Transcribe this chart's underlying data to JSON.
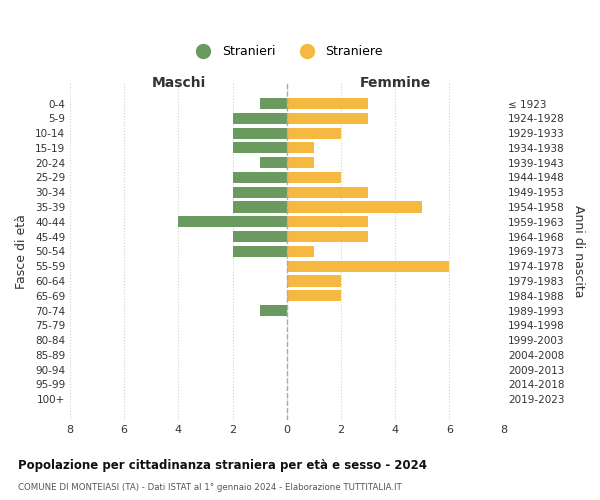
{
  "age_groups": [
    "0-4",
    "5-9",
    "10-14",
    "15-19",
    "20-24",
    "25-29",
    "30-34",
    "35-39",
    "40-44",
    "45-49",
    "50-54",
    "55-59",
    "60-64",
    "65-69",
    "70-74",
    "75-79",
    "80-84",
    "85-89",
    "90-94",
    "95-99",
    "100+"
  ],
  "birth_years": [
    "2019-2023",
    "2014-2018",
    "2009-2013",
    "2004-2008",
    "1999-2003",
    "1994-1998",
    "1989-1993",
    "1984-1988",
    "1979-1983",
    "1974-1978",
    "1969-1973",
    "1964-1968",
    "1959-1963",
    "1954-1958",
    "1949-1953",
    "1944-1948",
    "1939-1943",
    "1934-1938",
    "1929-1933",
    "1924-1928",
    "≤ 1923"
  ],
  "maschi": [
    1,
    2,
    2,
    2,
    1,
    2,
    2,
    2,
    4,
    2,
    2,
    0,
    0,
    0,
    1,
    0,
    0,
    0,
    0,
    0,
    0
  ],
  "femmine": [
    3,
    3,
    2,
    1,
    1,
    2,
    3,
    5,
    3,
    3,
    1,
    6,
    2,
    2,
    0,
    0,
    0,
    0,
    0,
    0,
    0
  ],
  "male_color": "#6a9a5f",
  "female_color": "#f5b942",
  "title": "Popolazione per cittadinanza straniera per età e sesso - 2024",
  "subtitle": "COMUNE DI MONTEIASI (TA) - Dati ISTAT al 1° gennaio 2024 - Elaborazione TUTTITALIA.IT",
  "legend_male": "Stranieri",
  "legend_female": "Straniere",
  "xlabel_left": "Maschi",
  "xlabel_right": "Femmine",
  "ylabel_left": "Fasce di età",
  "ylabel_right": "Anni di nascita",
  "xlim": 8,
  "background_color": "#ffffff",
  "grid_color": "#d0d0d0"
}
